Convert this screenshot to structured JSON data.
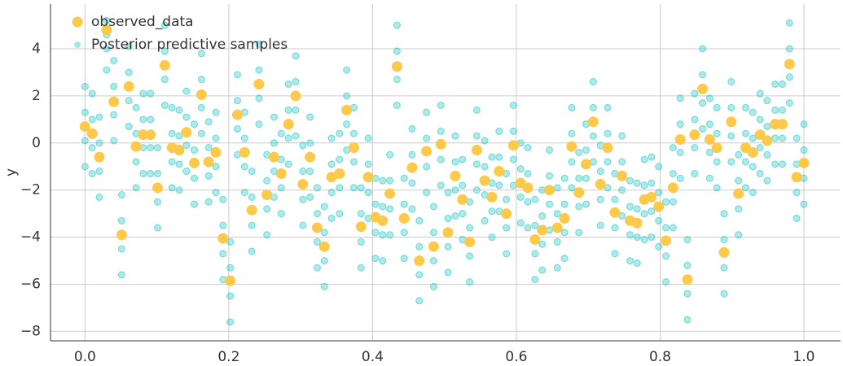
{
  "chart_data": {
    "type": "scatter",
    "y_label": "y",
    "xlim": [
      -0.048,
      1.051
    ],
    "ylim": [
      -8.4,
      5.9
    ],
    "xticks": [
      {
        "value": 0,
        "label": "0.0"
      },
      0.2,
      0.4,
      0.6,
      0.8,
      {
        "value": 1,
        "label": "1.0"
      }
    ],
    "yticks": [
      {
        "value": -8,
        "label": "−8"
      },
      {
        "value": -6,
        "label": "−6"
      },
      {
        "value": -4,
        "label": "−4"
      },
      {
        "value": -2,
        "label": "−2"
      },
      0,
      2,
      4
    ],
    "grid": true,
    "legend": "upper left",
    "x": [
      0,
      0.01,
      0.02,
      0.03,
      0.04,
      0.051,
      0.061,
      0.071,
      0.081,
      0.091,
      0.101,
      0.111,
      0.121,
      0.131,
      0.141,
      0.152,
      0.162,
      0.172,
      0.182,
      0.192,
      0.202,
      0.212,
      0.222,
      0.232,
      0.242,
      0.253,
      0.263,
      0.273,
      0.283,
      0.293,
      0.303,
      0.313,
      0.323,
      0.333,
      0.343,
      0.354,
      0.364,
      0.374,
      0.384,
      0.394,
      0.404,
      0.414,
      0.424,
      0.434,
      0.444,
      0.455,
      0.465,
      0.475,
      0.485,
      0.495,
      0.505,
      0.515,
      0.525,
      0.535,
      0.545,
      0.556,
      0.566,
      0.576,
      0.586,
      0.596,
      0.606,
      0.616,
      0.626,
      0.636,
      0.646,
      0.657,
      0.667,
      0.677,
      0.687,
      0.697,
      0.707,
      0.717,
      0.727,
      0.737,
      0.747,
      0.758,
      0.768,
      0.778,
      0.788,
      0.798,
      0.808,
      0.818,
      0.828,
      0.838,
      0.848,
      0.859,
      0.869,
      0.879,
      0.889,
      0.899,
      0.909,
      0.919,
      0.929,
      0.939,
      0.949,
      0.96,
      0.97,
      0.98,
      0.99,
      1.0
    ],
    "series": [
      {
        "name": "observed_data",
        "color": "#fdc94a",
        "values": [
          0.7,
          0.4,
          -0.6,
          4.8,
          1.75,
          -3.9,
          2.4,
          -0.15,
          0.35,
          0.35,
          -1.9,
          3.3,
          -0.2,
          -0.3,
          0.45,
          -0.85,
          2.05,
          -0.8,
          -0.4,
          -4.05,
          -5.85,
          1.2,
          -0.4,
          -2.85,
          2.5,
          -2.2,
          -0.6,
          -1.3,
          0.8,
          2.0,
          -1.75,
          -0.6,
          -3.6,
          -4.4,
          -1.45,
          -1.3,
          1.4,
          -0.2,
          -3.55,
          -1.45,
          -3.15,
          -3.3,
          -2.15,
          3.25,
          -3.2,
          -1.05,
          -5.0,
          -0.35,
          -4.4,
          -0.05,
          -3.8,
          -1.4,
          -2.4,
          -4.2,
          -0.3,
          -1.6,
          -2.3,
          -1.2,
          -3.0,
          -0.1,
          -1.7,
          -1.9,
          -4.1,
          -3.7,
          -2.0,
          -3.6,
          -3.2,
          -0.15,
          -2.1,
          -0.9,
          0.9,
          -1.75,
          -0.2,
          -2.95,
          -1.4,
          -3.3,
          -3.4,
          -2.4,
          -2.3,
          -2.7,
          -4.15,
          -1.9,
          0.15,
          -5.8,
          0.35,
          2.3,
          0.15,
          -0.2,
          -4.65,
          0.9,
          -2.15,
          -0.2,
          -0.4,
          0.35,
          0.1,
          0.8,
          0.8,
          3.35,
          -1.45,
          -0.85
        ]
      },
      {
        "name": "Posterior predictive samples",
        "color": "#17c3bf",
        "values": [
          [
            -1.0,
            0.1,
            1.3,
            2.4
          ],
          [
            -1.3,
            -0.2,
            1.0,
            2.1
          ],
          [
            -2.3,
            -1.2,
            0.0,
            1.1
          ],
          [
            3.1,
            4.0,
            4.6,
            5.2
          ],
          [
            0.1,
            1.2,
            2.4,
            3.5
          ],
          [
            -5.6,
            -4.5,
            -3.3,
            -2.2
          ],
          [
            0.7,
            1.8,
            3.0,
            4.1
          ],
          [
            -1.9,
            -0.8,
            0.4,
            1.5
          ],
          [
            -1.3,
            -0.2,
            1.0,
            2.1
          ],
          [
            -1.3,
            -0.2,
            1.0,
            2.1
          ],
          [
            -3.6,
            -2.5,
            -1.3,
            -0.2
          ],
          [
            1.6,
            2.7,
            3.9,
            5.0
          ],
          [
            -1.9,
            -0.8,
            0.4,
            1.5
          ],
          [
            -2.0,
            -0.9,
            0.3,
            1.4
          ],
          [
            -1.2,
            -0.1,
            1.1,
            2.2
          ],
          [
            -2.6,
            -1.5,
            -0.3,
            0.8
          ],
          [
            0.4,
            1.5,
            2.7,
            3.8
          ],
          [
            -2.5,
            -1.4,
            -0.2,
            0.9
          ],
          [
            -2.1,
            -1.0,
            0.2,
            1.3
          ],
          [
            -5.8,
            -4.7,
            -3.5,
            -2.4
          ],
          [
            -7.6,
            -6.5,
            -5.3,
            -4.2
          ],
          [
            -0.5,
            0.6,
            1.8,
            2.9
          ],
          [
            -2.1,
            -1.0,
            0.2,
            1.3
          ],
          [
            -4.6,
            -3.5,
            -2.3,
            -1.2
          ],
          [
            0.8,
            1.9,
            3.1,
            4.2
          ],
          [
            -3.9,
            -2.8,
            -1.6,
            -0.5
          ],
          [
            -2.3,
            -1.2,
            0.0,
            1.1
          ],
          [
            -3.0,
            -1.9,
            -0.7,
            0.4
          ],
          [
            -0.9,
            0.2,
            1.4,
            2.5
          ],
          [
            0.3,
            1.4,
            2.6,
            3.7
          ],
          [
            -3.5,
            -2.4,
            -1.2,
            -0.1
          ],
          [
            -2.3,
            -1.2,
            0.0,
            1.1
          ],
          [
            -5.3,
            -4.2,
            -3.0,
            -1.9
          ],
          [
            -6.1,
            -5.0,
            -3.8,
            -2.7
          ],
          [
            -3.2,
            -2.1,
            -0.9,
            0.2
          ],
          [
            -3.0,
            -1.9,
            -0.7,
            0.4
          ],
          [
            -0.3,
            0.8,
            2.0,
            3.1
          ],
          [
            -1.9,
            -0.8,
            0.4,
            1.5
          ],
          [
            -5.3,
            -4.2,
            -3.0,
            -1.9
          ],
          [
            -3.2,
            -2.1,
            -0.9,
            0.2
          ],
          [
            -4.9,
            -3.8,
            -2.6,
            -1.5
          ],
          [
            -5.0,
            -3.9,
            -2.7,
            -1.6
          ],
          [
            -3.9,
            -2.8,
            -1.6,
            -0.5
          ],
          [
            1.6,
            2.7,
            3.9,
            5.0
          ],
          [
            -4.9,
            -3.8,
            -2.6,
            -1.5
          ],
          [
            -2.8,
            -1.7,
            -0.5,
            0.6
          ],
          [
            -6.7,
            -5.6,
            -4.4,
            -3.3
          ],
          [
            -2.1,
            -1.0,
            0.2,
            1.3
          ],
          [
            -6.1,
            -5.0,
            -3.8,
            -2.7
          ],
          [
            -1.8,
            -0.7,
            0.5,
            1.6
          ],
          [
            -5.5,
            -4.4,
            -3.2,
            -2.1
          ],
          [
            -3.1,
            -2.0,
            -0.8,
            0.3
          ],
          [
            -4.1,
            -3.0,
            -1.8,
            -0.7
          ],
          [
            -5.9,
            -4.8,
            -3.6,
            -2.5
          ],
          [
            -2.0,
            -0.9,
            0.3,
            1.4
          ],
          [
            -3.3,
            -2.2,
            -1.0,
            0.1
          ],
          [
            -4.0,
            -2.9,
            -1.7,
            -0.6
          ],
          [
            -2.9,
            -1.8,
            -0.6,
            0.5
          ],
          [
            -4.7,
            -3.6,
            -2.4,
            -1.3
          ],
          [
            -1.8,
            -0.7,
            0.5,
            1.6
          ],
          [
            -3.4,
            -2.3,
            -1.1,
            0.0
          ],
          [
            -3.6,
            -2.5,
            -1.3,
            -0.2
          ],
          [
            -5.8,
            -4.7,
            -3.5,
            -2.4
          ],
          [
            -5.4,
            -4.3,
            -3.1,
            -2.0
          ],
          [
            -3.7,
            -2.6,
            -1.4,
            -0.3
          ],
          [
            -5.3,
            -4.2,
            -3.0,
            -1.9
          ],
          [
            -4.9,
            -3.8,
            -2.6,
            -1.5
          ],
          [
            -1.9,
            -0.8,
            0.4,
            1.5
          ],
          [
            -3.8,
            -2.7,
            -1.5,
            -0.4
          ],
          [
            -2.6,
            -1.5,
            -0.3,
            0.8
          ],
          [
            -0.8,
            0.3,
            1.5,
            2.6
          ],
          [
            -3.5,
            -2.4,
            -1.2,
            -0.1
          ],
          [
            -1.9,
            -0.8,
            0.4,
            1.5
          ],
          [
            -4.7,
            -3.6,
            -2.4,
            -1.3
          ],
          [
            -3.1,
            -2.0,
            -0.8,
            0.3
          ],
          [
            -5.0,
            -3.9,
            -2.7,
            -1.6
          ],
          [
            -5.1,
            -4.0,
            -2.8,
            -1.7
          ],
          [
            -4.1,
            -3.0,
            -1.8,
            -0.7
          ],
          [
            -4.0,
            -2.9,
            -1.7,
            -0.6
          ],
          [
            -4.4,
            -3.3,
            -2.1,
            -1.0
          ],
          [
            -5.9,
            -4.8,
            -3.6,
            -2.5
          ],
          [
            -3.6,
            -2.5,
            -1.3,
            -0.2
          ],
          [
            -1.5,
            -0.4,
            0.8,
            1.9
          ],
          [
            -7.5,
            -6.4,
            -5.2,
            -4.1
          ],
          [
            -1.3,
            -0.2,
            1.0,
            2.1
          ],
          [
            0.6,
            1.7,
            2.9,
            4.0
          ],
          [
            -1.5,
            -0.4,
            0.8,
            1.9
          ],
          [
            -1.9,
            -0.8,
            0.4,
            1.5
          ],
          [
            -6.4,
            -5.3,
            -4.1,
            -3.0
          ],
          [
            -0.8,
            0.3,
            1.5,
            2.6
          ],
          [
            -3.9,
            -2.8,
            -1.6,
            -0.5
          ],
          [
            -1.9,
            -0.8,
            0.4,
            1.5
          ],
          [
            -2.1,
            -1.0,
            0.2,
            1.3
          ],
          [
            -1.3,
            -0.2,
            1.0,
            2.1
          ],
          [
            -1.6,
            -0.5,
            0.7,
            1.8
          ],
          [
            -0.9,
            0.2,
            1.4,
            2.5
          ],
          [
            -0.9,
            0.2,
            1.4,
            2.5
          ],
          [
            1.7,
            2.8,
            4.0,
            5.1
          ],
          [
            -3.2,
            -2.1,
            -0.9,
            0.2
          ],
          [
            -2.6,
            -1.5,
            -0.3,
            0.8
          ]
        ]
      }
    ]
  }
}
